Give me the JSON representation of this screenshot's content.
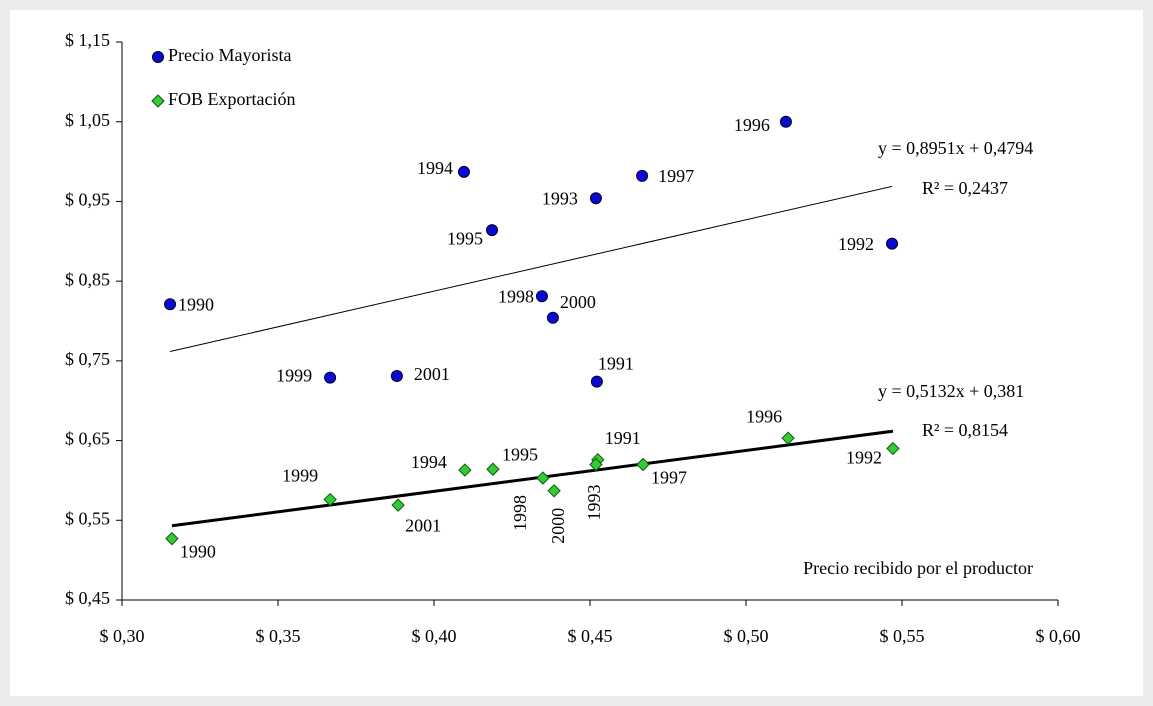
{
  "chart_data": {
    "type": "scatter",
    "xlabel": "Precio recibido por el productor",
    "xlim": [
      0.3,
      0.6
    ],
    "xticks": [
      {
        "value": 0.3,
        "label": "$ 0,30"
      },
      {
        "value": 0.35,
        "label": "$ 0,35"
      },
      {
        "value": 0.4,
        "label": "$ 0,40"
      },
      {
        "value": 0.45,
        "label": "$ 0,45"
      },
      {
        "value": 0.5,
        "label": "$ 0,50"
      },
      {
        "value": 0.55,
        "label": "$ 0,55"
      },
      {
        "value": 0.6,
        "label": "$ 0,60"
      }
    ],
    "ylim": [
      0.45,
      1.15
    ],
    "yticks": [
      {
        "value": 0.45,
        "label": "$ 0,45"
      },
      {
        "value": 0.55,
        "label": "$ 0,55"
      },
      {
        "value": 0.65,
        "label": "$ 0,65"
      },
      {
        "value": 0.75,
        "label": "$ 0,75"
      },
      {
        "value": 0.85,
        "label": "$ 0,85"
      },
      {
        "value": 0.95,
        "label": "$ 0,95"
      },
      {
        "value": 1.05,
        "label": "$ 1,05"
      },
      {
        "value": 1.15,
        "label": "$ 1,15"
      }
    ],
    "legend": "upper left",
    "series": [
      {
        "name": "Precio Mayorista",
        "color": "#0a0ad0",
        "marker": "circle",
        "point_labels": [
          "1990",
          "1991",
          "1992",
          "1993",
          "1994",
          "1995",
          "1996",
          "1997",
          "1998",
          "1999",
          "2000",
          "2001"
        ],
        "x": [
          0.3154,
          0.4522,
          0.5468,
          0.4519,
          0.4096,
          0.4186,
          0.5128,
          0.4667,
          0.4346,
          0.3667,
          0.4381,
          0.3881
        ],
        "values": [
          0.821,
          0.724,
          0.897,
          0.954,
          0.987,
          0.914,
          1.05,
          0.982,
          0.831,
          0.729,
          0.804,
          0.731
        ],
        "trendline": {
          "equation": "y = 0,8951x + 0,4794",
          "slope": 0.8951,
          "intercept": 0.4794,
          "r_squared": {
            "value": 0.2437,
            "label": "R² = 0,2437"
          }
        }
      },
      {
        "name": "FOB Exportación",
        "color": "#33cc33",
        "marker": "diamond",
        "point_labels": [
          "1990",
          "1991",
          "1992",
          "1993",
          "1994",
          "1995",
          "1996",
          "1997",
          "1998",
          "1999",
          "2000",
          "2001"
        ],
        "x": [
          0.316,
          0.4525,
          0.5471,
          0.4519,
          0.4099,
          0.4189,
          0.5135,
          0.467,
          0.4349,
          0.3667,
          0.4385,
          0.3885
        ],
        "values": [
          0.527,
          0.626,
          0.64,
          0.62,
          0.613,
          0.614,
          0.653,
          0.62,
          0.603,
          0.576,
          0.587,
          0.569
        ],
        "trendline": {
          "equation": "y = 0,5132x + 0,381",
          "slope": 0.5132,
          "intercept": 0.381,
          "r_squared": {
            "value": 0.8154,
            "label": "R² = 0,8154"
          }
        }
      }
    ]
  }
}
